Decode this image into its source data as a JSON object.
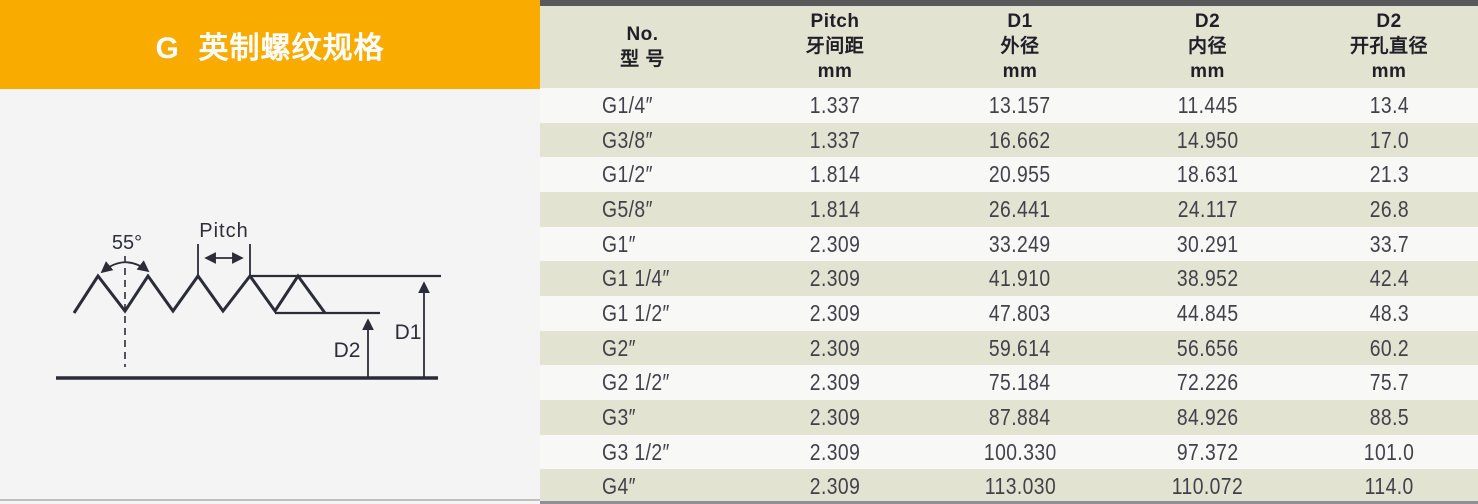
{
  "colors": {
    "accent_orange": "#FAAB00",
    "header_beige": "#E3E3D2",
    "stripe_beige": "#E3E3D2",
    "top_border_gray": "#59595B",
    "number_text": "#41414B",
    "diagram_line": "#2C2C38"
  },
  "header": {
    "title": "G  英制螺纹规格"
  },
  "diagram": {
    "angle_label": "55°",
    "pitch_label": "Pitch",
    "d1_label": "D1",
    "d2_label": "D2"
  },
  "table": {
    "columns": [
      {
        "line1": "No.",
        "line2": "型 号",
        "line3": ""
      },
      {
        "line1": "Pitch",
        "line2": "牙间距",
        "line3": "mm"
      },
      {
        "line1": "D1",
        "line2": "外径",
        "line3": "mm"
      },
      {
        "line1": "D2",
        "line2": "内径",
        "line3": "mm"
      },
      {
        "line1": "D2",
        "line2": "开孔直径",
        "line3": "mm"
      }
    ],
    "rows": [
      {
        "model": "G1/4″",
        "pitch": "1.337",
        "d1_od": "13.157",
        "d2_id": "11.445",
        "d2_bore": "13.4"
      },
      {
        "model": "G3/8″",
        "pitch": "1.337",
        "d1_od": "16.662",
        "d2_id": "14.950",
        "d2_bore": "17.0"
      },
      {
        "model": "G1/2″",
        "pitch": "1.814",
        "d1_od": "20.955",
        "d2_id": "18.631",
        "d2_bore": "21.3"
      },
      {
        "model": "G5/8″",
        "pitch": "1.814",
        "d1_od": "26.441",
        "d2_id": "24.117",
        "d2_bore": "26.8"
      },
      {
        "model": "G1″",
        "pitch": "2.309",
        "d1_od": "33.249",
        "d2_id": "30.291",
        "d2_bore": "33.7"
      },
      {
        "model": "G1 1/4″",
        "pitch": "2.309",
        "d1_od": "41.910",
        "d2_id": "38.952",
        "d2_bore": "42.4"
      },
      {
        "model": "G1 1/2″",
        "pitch": "2.309",
        "d1_od": "47.803",
        "d2_id": "44.845",
        "d2_bore": "48.3"
      },
      {
        "model": "G2″",
        "pitch": "2.309",
        "d1_od": "59.614",
        "d2_id": "56.656",
        "d2_bore": "60.2"
      },
      {
        "model": "G2 1/2″",
        "pitch": "2.309",
        "d1_od": "75.184",
        "d2_id": "72.226",
        "d2_bore": "75.7"
      },
      {
        "model": "G3″",
        "pitch": "2.309",
        "d1_od": "87.884",
        "d2_id": "84.926",
        "d2_bore": "88.5"
      },
      {
        "model": "G3 1/2″",
        "pitch": "2.309",
        "d1_od": "100.330",
        "d2_id": "97.372",
        "d2_bore": "101.0"
      },
      {
        "model": "G4″",
        "pitch": "2.309",
        "d1_od": "113.030",
        "d2_id": "110.072",
        "d2_bore": "114.0"
      }
    ]
  }
}
